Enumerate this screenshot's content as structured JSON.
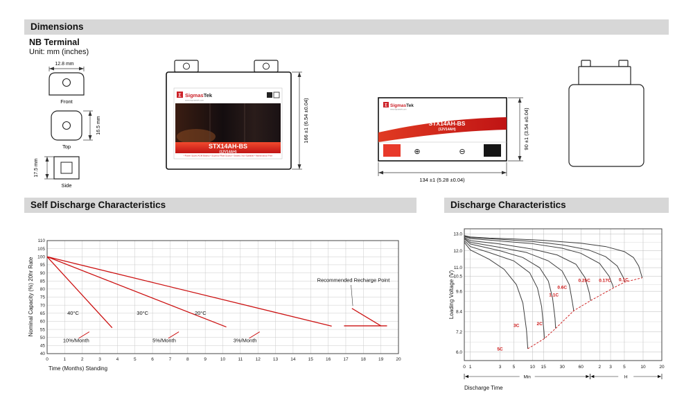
{
  "header": {
    "dimensions": "Dimensions",
    "self_discharge": "Self Discharge Characteristics",
    "discharge": "Discharge Characteristics"
  },
  "terminal": {
    "title": "NB Terminal",
    "unit": "Unit: mm (inches)",
    "front": {
      "dim": "12.8 mm",
      "label": "Front"
    },
    "top": {
      "dim": "16.5 mm",
      "label": "Top"
    },
    "side": {
      "dim": "17.5 mm",
      "label": "Side"
    }
  },
  "battery": {
    "brand_mark": "Σ",
    "brand_red": "Sigmas",
    "brand_dark": "Tek",
    "website": "www.sigmastek.com",
    "model": "STX14AH-BS",
    "spec": "(12V14AH)",
    "footnote": "• Power Sports AGM Battery • Superior Plate Source • Sealed, Non-Spillable • Maintenance Free",
    "plus_symbol": "⊕",
    "minus_symbol": "⊖",
    "height_dim": "166 ±1 (6.54 ±0.04)",
    "width_dim": "134 ±1 (5.28 ±0.04)",
    "depth_dim": "90 ±1 (3.54 ±0.04)"
  },
  "chart_data": [
    {
      "type": "line",
      "name": "self-discharge",
      "title": "Self Discharge Characteristics",
      "xlabel": "Time (Months) Standing",
      "ylabel": "Nominal Capacity (%) 20hr Rate",
      "xlim": [
        0,
        20
      ],
      "ylim": [
        40,
        110
      ],
      "xticks": [
        0,
        1,
        2,
        3,
        4,
        5,
        6,
        7,
        8,
        9,
        10,
        11,
        12,
        13,
        14,
        15,
        16,
        17,
        18,
        19,
        20
      ],
      "yticks": [
        110,
        105,
        100,
        95,
        90,
        85,
        80,
        75,
        70,
        65,
        60,
        55,
        50,
        45,
        40
      ],
      "grid": true,
      "line_color": "#cc1111",
      "series": [
        {
          "name": "40C 10%/Month",
          "points": [
            [
              0,
              100
            ],
            [
              3.7,
              56
            ]
          ]
        },
        {
          "name": "30C 5%/Month",
          "points": [
            [
              0,
              100
            ],
            [
              10.2,
              56.5
            ]
          ]
        },
        {
          "name": "20C 3%/Month",
          "points": [
            [
              0,
              100
            ],
            [
              16.2,
              57
            ]
          ]
        },
        {
          "name": "recharge-horizontal",
          "points": [
            [
              16.9,
              57.2
            ],
            [
              19.35,
              57.2
            ]
          ]
        },
        {
          "name": "recharge-diagonal",
          "points": [
            [
              17.35,
              68
            ],
            [
              19.0,
              57.2
            ]
          ]
        }
      ],
      "slashes": [
        [
          [
            1.8,
            49.5
          ],
          [
            2.4,
            53.5
          ]
        ],
        [
          [
            6.9,
            49.5
          ],
          [
            7.5,
            53.5
          ]
        ],
        [
          [
            11.5,
            49.5
          ],
          [
            12.1,
            53.5
          ]
        ]
      ],
      "leader_lines": [
        [
          [
            17.3,
            82.5
          ],
          [
            17.4,
            69.5
          ]
        ]
      ],
      "annotations": [
        {
          "text": "40°C",
          "x": 1.15,
          "y": 64
        },
        {
          "text": "30°C",
          "x": 5.1,
          "y": 64
        },
        {
          "text": "20°C",
          "x": 8.4,
          "y": 64
        },
        {
          "text": "10%/Month",
          "x": 0.9,
          "y": 47
        },
        {
          "text": "5%/Month",
          "x": 6.0,
          "y": 47
        },
        {
          "text": "3%/Month",
          "x": 10.6,
          "y": 47
        },
        {
          "text": "Recommended Recharge Point",
          "x": 19.5,
          "y": 84.5,
          "anchor": "end"
        }
      ]
    },
    {
      "type": "line",
      "name": "discharge-characteristics",
      "title": "Discharge Characteristics",
      "xlabel": "Discharge Time",
      "ylabel": "Loading Voltage (V)",
      "x_scale": "log-minutes",
      "xlim": [
        0.8,
        1200
      ],
      "ylim": [
        5.5,
        13.3
      ],
      "origin_label": "0",
      "xticks": [
        {
          "t": 1,
          "label": "1"
        },
        {
          "t": 3,
          "label": "3"
        },
        {
          "t": 5,
          "label": "5"
        },
        {
          "t": 10,
          "label": "10"
        },
        {
          "t": 15,
          "label": "15"
        },
        {
          "t": 30,
          "label": "30"
        },
        {
          "t": 60,
          "label": "60"
        },
        {
          "t": 120,
          "label": "2"
        },
        {
          "t": 180,
          "label": "3"
        },
        {
          "t": 300,
          "label": "5"
        },
        {
          "t": 600,
          "label": "10"
        },
        {
          "t": 1200,
          "label": "20"
        }
      ],
      "unit_groups": [
        {
          "label": "Min",
          "from": 0.8,
          "to": 84
        },
        {
          "label": "H",
          "from": 84,
          "to": 1200
        }
      ],
      "yticks": [
        13.0,
        12.0,
        11.0,
        10.5,
        9.6,
        8.4,
        7.2,
        6.0
      ],
      "minor_hlines": [
        12.5,
        11.5,
        10.0,
        9.0,
        7.8,
        6.6
      ],
      "curve_color": "#3d3d3d",
      "label_color": "#cc1111",
      "series": [
        {
          "name": "0.1C",
          "points": [
            [
              0.8,
              12.9
            ],
            [
              1,
              12.82
            ],
            [
              2,
              12.75
            ],
            [
              5,
              12.7
            ],
            [
              15,
              12.62
            ],
            [
              60,
              12.45
            ],
            [
              150,
              12.25
            ],
            [
              300,
              11.95
            ],
            [
              420,
              11.6
            ],
            [
              510,
              11.1
            ],
            [
              560,
              10.6
            ],
            [
              580,
              10.4
            ]
          ]
        },
        {
          "name": "0.17C",
          "points": [
            [
              0.8,
              12.88
            ],
            [
              1,
              12.78
            ],
            [
              3,
              12.68
            ],
            [
              10,
              12.55
            ],
            [
              30,
              12.35
            ],
            [
              80,
              12.05
            ],
            [
              150,
              11.65
            ],
            [
              230,
              11.1
            ],
            [
              290,
              10.4
            ],
            [
              305,
              10.15
            ]
          ]
        },
        {
          "name": "0.25C",
          "points": [
            [
              0.8,
              12.85
            ],
            [
              1,
              12.72
            ],
            [
              3,
              12.58
            ],
            [
              10,
              12.42
            ],
            [
              30,
              12.15
            ],
            [
              60,
              11.85
            ],
            [
              120,
              11.25
            ],
            [
              170,
              10.5
            ],
            [
              195,
              9.95
            ],
            [
              200,
              9.8
            ]
          ]
        },
        {
          "name": "0.6C",
          "points": [
            [
              0.8,
              12.8
            ],
            [
              1,
              12.6
            ],
            [
              3,
              12.4
            ],
            [
              10,
              12.1
            ],
            [
              25,
              11.75
            ],
            [
              50,
              11.2
            ],
            [
              70,
              10.4
            ],
            [
              82,
              9.5
            ],
            [
              86,
              9.05
            ]
          ]
        },
        {
          "name": "1.1C",
          "points": [
            [
              0.8,
              12.75
            ],
            [
              1,
              12.5
            ],
            [
              3,
              12.2
            ],
            [
              8,
              11.9
            ],
            [
              18,
              11.4
            ],
            [
              30,
              10.8
            ],
            [
              39,
              10.0
            ],
            [
              44,
              8.9
            ],
            [
              46,
              8.45
            ]
          ]
        },
        {
          "name": "2C",
          "points": [
            [
              0.8,
              12.7
            ],
            [
              1,
              12.4
            ],
            [
              3,
              12.0
            ],
            [
              7,
              11.6
            ],
            [
              13,
              11.0
            ],
            [
              18,
              10.2
            ],
            [
              21,
              9.2
            ],
            [
              23,
              8.0
            ],
            [
              23.5,
              7.4
            ]
          ]
        },
        {
          "name": "3C",
          "points": [
            [
              0.8,
              12.6
            ],
            [
              1,
              12.25
            ],
            [
              2,
              11.9
            ],
            [
              5,
              11.4
            ],
            [
              9,
              10.7
            ],
            [
              12,
              9.8
            ],
            [
              14,
              8.7
            ],
            [
              15.3,
              7.2
            ],
            [
              15.5,
              6.8
            ]
          ]
        },
        {
          "name": "5C",
          "points": [
            [
              0.8,
              12.5
            ],
            [
              1,
              12.05
            ],
            [
              2,
              11.5
            ],
            [
              3.5,
              10.9
            ],
            [
              5.5,
              10.0
            ],
            [
              7,
              8.9
            ],
            [
              8,
              7.3
            ],
            [
              8.4,
              6.2
            ]
          ]
        }
      ],
      "cutoff_dashed": [
        [
          8.4,
          6.2
        ],
        [
          15.5,
          6.8
        ],
        [
          23.5,
          7.4
        ],
        [
          46,
          8.45
        ],
        [
          86,
          9.05
        ],
        [
          200,
          9.8
        ],
        [
          305,
          10.15
        ],
        [
          580,
          10.4
        ]
      ],
      "labels": [
        {
          "text": "5C",
          "t": 3.0,
          "v": 6.1
        },
        {
          "text": "3C",
          "t": 5.5,
          "v": 7.5
        },
        {
          "text": "2C",
          "t": 13,
          "v": 7.6
        },
        {
          "text": "1.1C",
          "t": 22,
          "v": 9.3
        },
        {
          "text": "0.6C",
          "t": 30,
          "v": 9.75
        },
        {
          "text": "0.25C",
          "t": 68,
          "v": 10.15
        },
        {
          "text": "0.17C",
          "t": 146,
          "v": 10.15
        },
        {
          "text": "0.1C",
          "t": 292,
          "v": 10.2
        }
      ]
    }
  ]
}
